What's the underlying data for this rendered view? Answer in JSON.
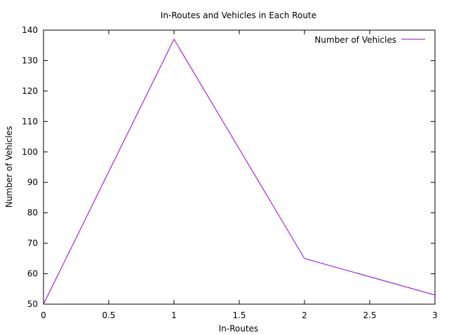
{
  "chart_data": {
    "type": "line",
    "title": "In-Routes and Vehicles in Each Route",
    "xlabel": "In-Routes",
    "ylabel": "Number of Vehicles",
    "xlim": [
      0,
      3
    ],
    "ylim": [
      50,
      140
    ],
    "xticks": [
      "0",
      "0.5",
      "1",
      "1.5",
      "2",
      "2.5",
      "3"
    ],
    "yticks": [
      "50",
      "60",
      "70",
      "80",
      "90",
      "100",
      "110",
      "120",
      "130",
      "140"
    ],
    "grid": false,
    "legend_position": "top-right",
    "series": [
      {
        "name": "Number of Vehicles",
        "color": "#9400d3",
        "x": [
          0,
          1,
          2,
          3
        ],
        "y": [
          50,
          137,
          65,
          53
        ]
      }
    ]
  }
}
